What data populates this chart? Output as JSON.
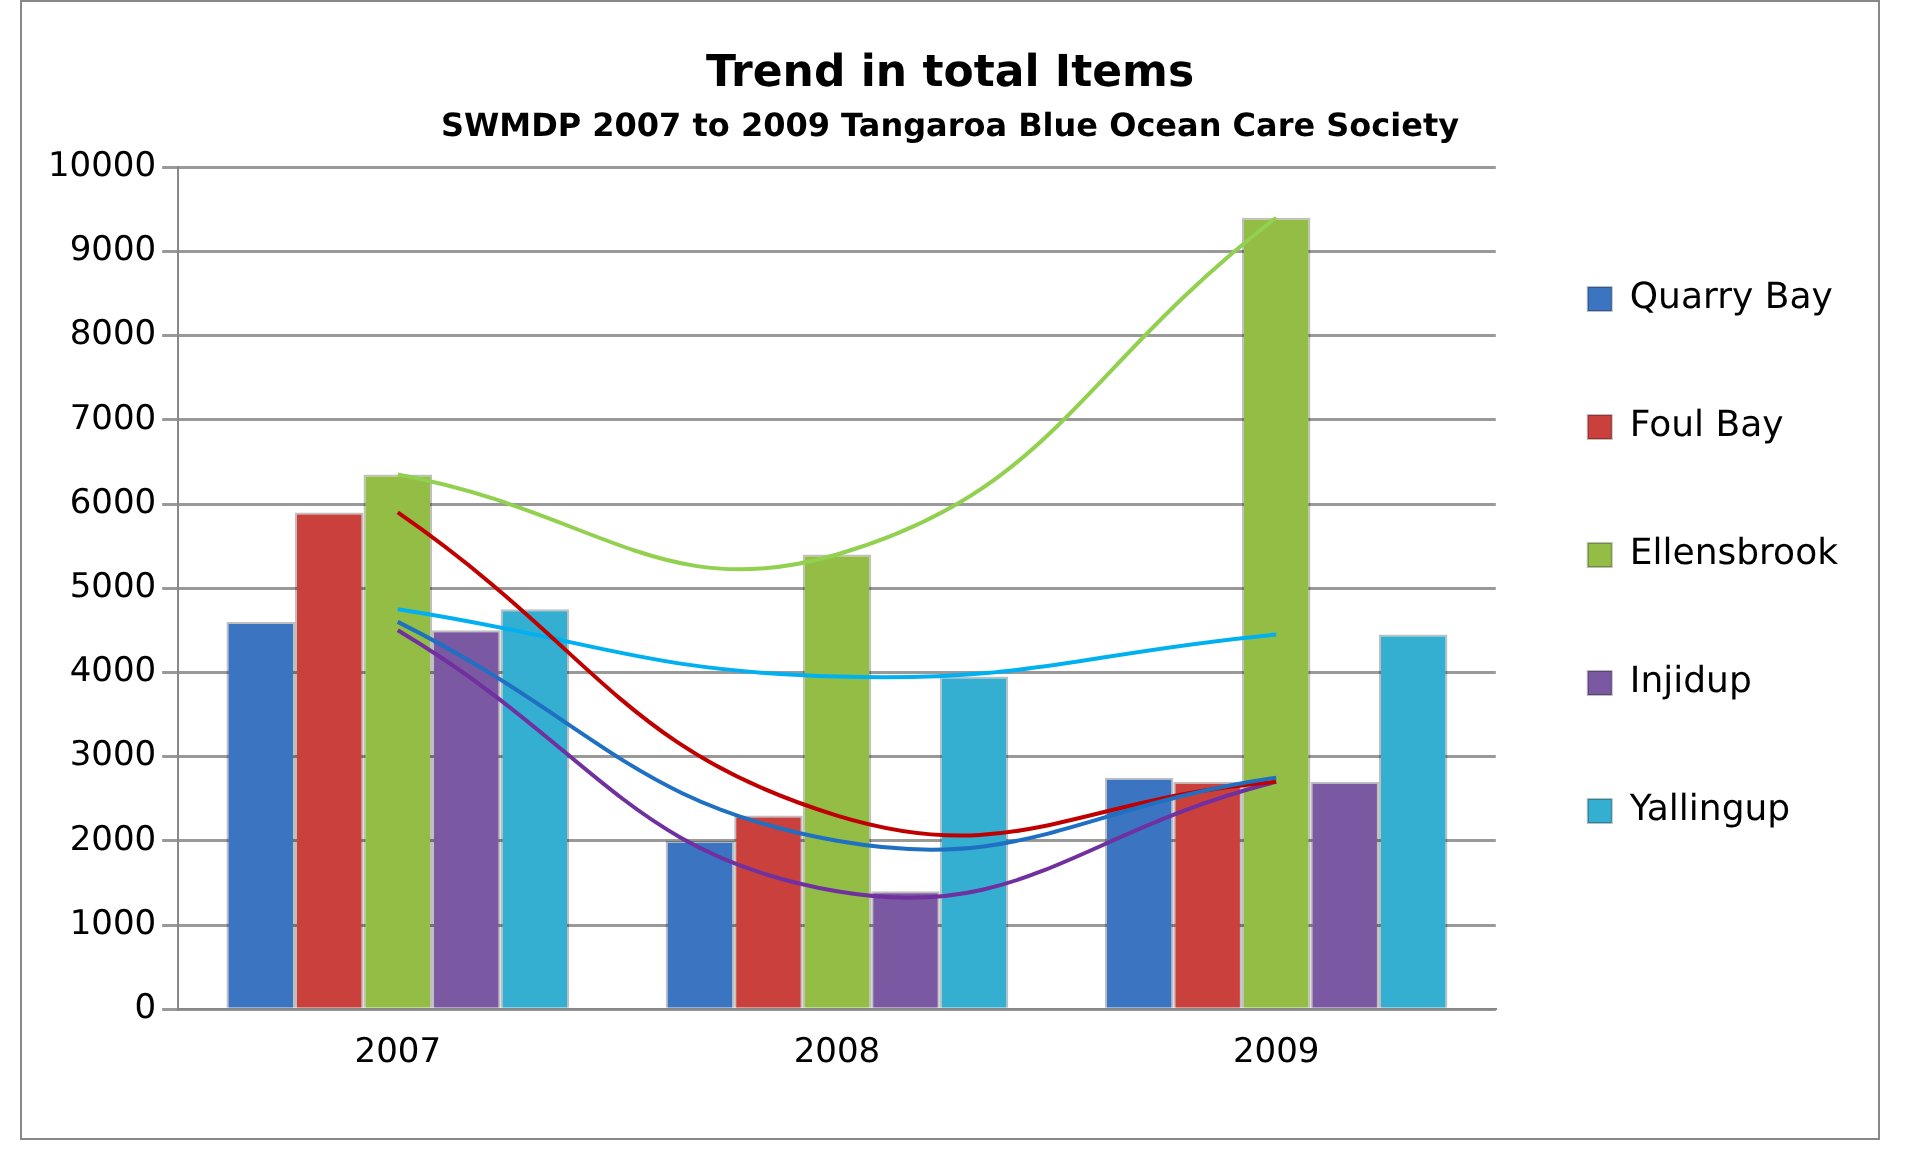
{
  "chart_data": {
    "type": "bar",
    "title": "Trend in total Items",
    "subtitle": "SWMDP 2007 to 2009 Tangaroa Blue Ocean Care Society",
    "categories": [
      "2007",
      "2008",
      "2009"
    ],
    "series": [
      {
        "name": "Quarry Bay",
        "color": "#3b74c0",
        "values": [
          4600,
          2000,
          2750
        ]
      },
      {
        "name": "Foul Bay",
        "color": "#c9403d",
        "values": [
          5900,
          2300,
          2700
        ]
      },
      {
        "name": "Ellensbrook",
        "color": "#93bd44",
        "values": [
          6350,
          5400,
          9400
        ]
      },
      {
        "name": "Injidup",
        "color": "#7b58a2",
        "values": [
          4500,
          1400,
          2700
        ]
      },
      {
        "name": "Yallingup",
        "color": "#34aed1",
        "values": [
          4750,
          3950,
          4450
        ]
      },
      {
        "type": "line",
        "color": "#1f6fc2",
        "values": [
          4600,
          2000,
          2750
        ]
      },
      {
        "type": "line",
        "color": "#c00000",
        "values": [
          5900,
          2300,
          2700
        ]
      },
      {
        "type": "line",
        "color": "#92d050",
        "values": [
          6350,
          5400,
          9400
        ]
      },
      {
        "type": "line",
        "color": "#7030a0",
        "values": [
          4500,
          1400,
          2700
        ]
      },
      {
        "type": "line",
        "color": "#00b0f0",
        "values": [
          4750,
          3950,
          4450
        ]
      }
    ],
    "ylim": [
      0,
      10000
    ],
    "yticks": [
      0,
      1000,
      2000,
      3000,
      4000,
      5000,
      6000,
      7000,
      8000,
      9000,
      10000
    ],
    "grid": "y",
    "legend": "right",
    "marker": "none"
  }
}
